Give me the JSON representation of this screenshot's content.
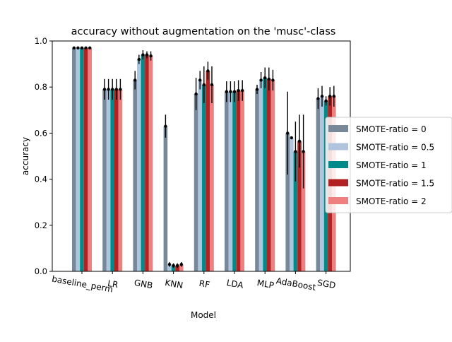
{
  "chart_data": {
    "type": "bar",
    "title": "accuracy without augmentation on the 'musc'-class",
    "xlabel": "Model",
    "ylabel": "accuracy",
    "ylim": [
      0,
      1.0
    ],
    "yticks": [
      "0.0",
      "0.2",
      "0.4",
      "0.6",
      "0.8",
      "1.0"
    ],
    "grid": false,
    "legend_placement": "right, outside plot",
    "categories": [
      "baseline_perm",
      "LR",
      "GNB",
      "KNN",
      "RF",
      "LDA",
      "MLP",
      "AdaBoost",
      "SGD"
    ],
    "series": [
      {
        "name": "SMOTE-ratio = 0",
        "color": "#778899",
        "values": [
          0.97,
          0.79,
          0.83,
          0.63,
          0.77,
          0.78,
          0.79,
          0.6,
          0.75
        ],
        "errors": [
          0.005,
          0.045,
          0.04,
          0.05,
          0.07,
          0.045,
          0.02,
          0.18,
          0.045
        ]
      },
      {
        "name": "SMOTE-ratio = 0.5",
        "color": "#b0c4de",
        "values": [
          0.97,
          0.79,
          0.92,
          0.03,
          0.83,
          0.78,
          0.83,
          0.58,
          0.76
        ],
        "errors": [
          0.005,
          0.045,
          0.02,
          0.01,
          0.04,
          0.045,
          0.035,
          0.0,
          0.045
        ]
      },
      {
        "name": "SMOTE-ratio = 1",
        "color": "#008b8b",
        "values": [
          0.97,
          0.79,
          0.94,
          0.025,
          0.81,
          0.78,
          0.84,
          0.52,
          0.74
        ],
        "errors": [
          0.005,
          0.045,
          0.02,
          0.01,
          0.08,
          0.045,
          0.045,
          0.13,
          0.02
        ]
      },
      {
        "name": "SMOTE-ratio = 1.5",
        "color": "#b22222",
        "values": [
          0.97,
          0.79,
          0.94,
          0.025,
          0.87,
          0.785,
          0.835,
          0.565,
          0.76
        ],
        "errors": [
          0.005,
          0.045,
          0.015,
          0.01,
          0.04,
          0.045,
          0.05,
          0.115,
          0.04
        ]
      },
      {
        "name": "SMOTE-ratio = 2",
        "color": "#f08080",
        "values": [
          0.97,
          0.79,
          0.935,
          0.03,
          0.81,
          0.785,
          0.83,
          0.52,
          0.76
        ],
        "errors": [
          0.005,
          0.045,
          0.02,
          0.01,
          0.08,
          0.045,
          0.045,
          0.16,
          0.045
        ]
      }
    ]
  }
}
